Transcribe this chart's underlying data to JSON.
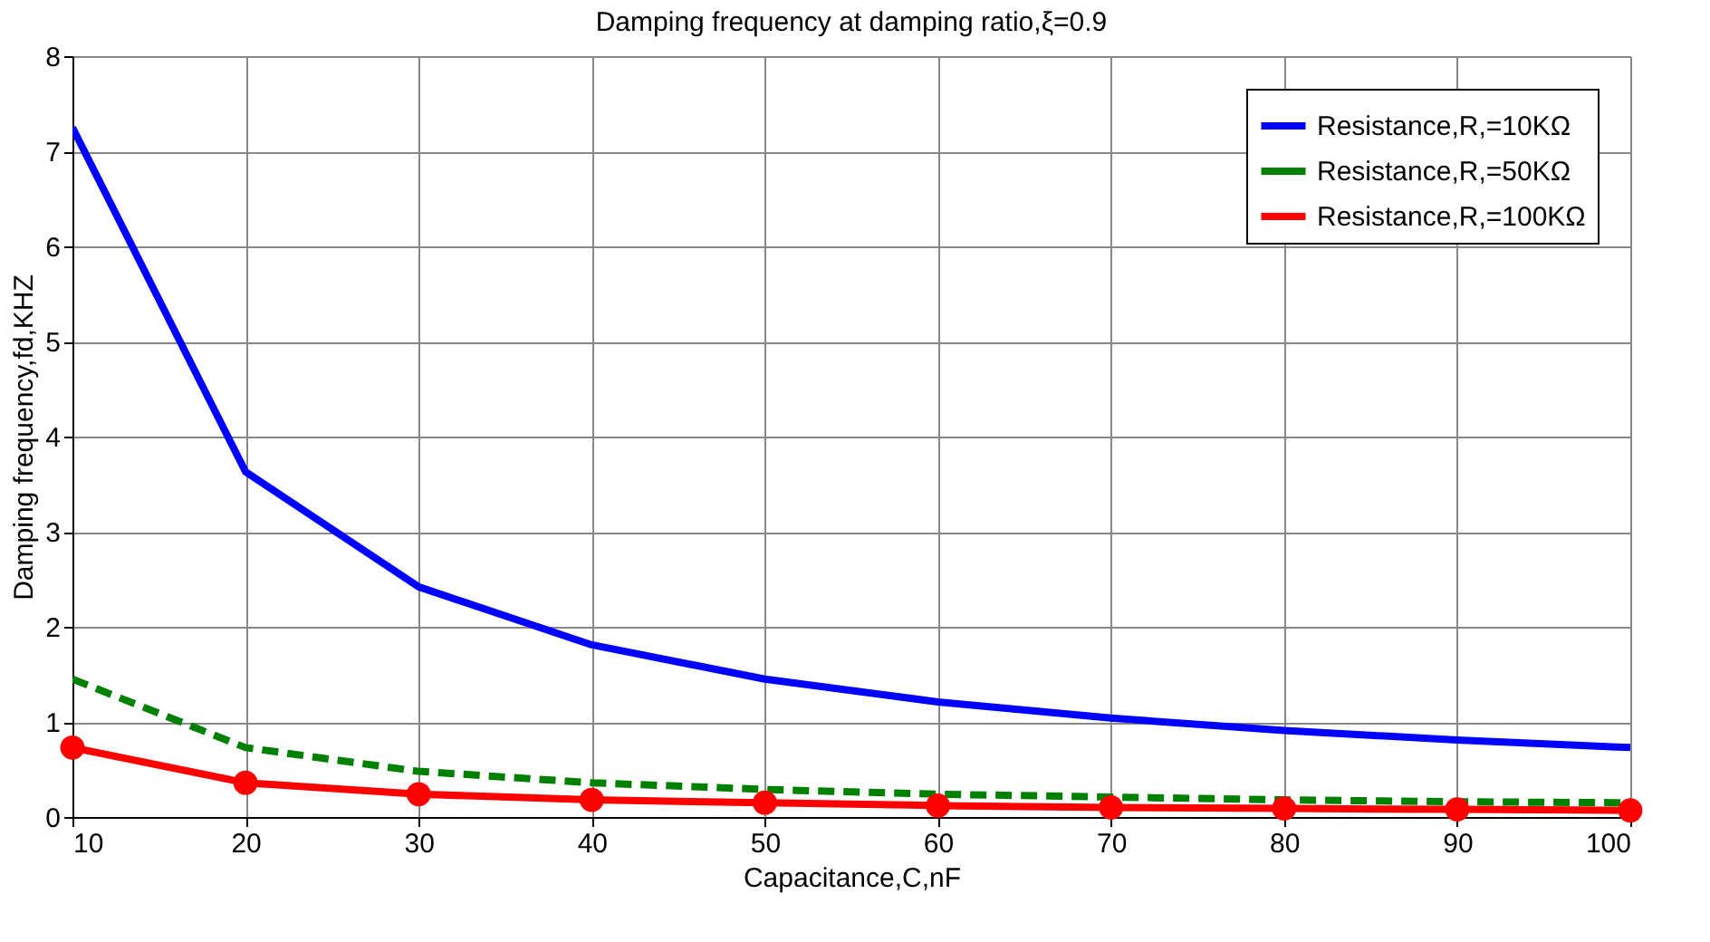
{
  "chart_data": {
    "type": "line",
    "title": "Damping frequency at damping ratio,ξ=0.9",
    "xlabel": "Capacitance,C,nF",
    "ylabel": "Damping frequency,fd,KHZ",
    "x": [
      10,
      20,
      30,
      40,
      50,
      60,
      70,
      80,
      90,
      100
    ],
    "xlim": [
      10,
      100
    ],
    "xticks": [
      10,
      20,
      30,
      40,
      50,
      60,
      70,
      80,
      90,
      100
    ],
    "ylim": [
      0,
      8
    ],
    "yticks": [
      0,
      1,
      2,
      3,
      4,
      5,
      6,
      7,
      8
    ],
    "grid": true,
    "legend": "top right",
    "series": [
      {
        "name": "Resistance,R,=10KΩ",
        "color": "#0000ff",
        "line_style": "solid",
        "marker": "none",
        "values": [
          7.25,
          3.63,
          2.42,
          1.81,
          1.45,
          1.21,
          1.04,
          0.91,
          0.81,
          0.73
        ]
      },
      {
        "name": "Resistance,R,=50KΩ",
        "color": "#008000",
        "line_style": "dashed",
        "marker": "none",
        "values": [
          1.45,
          0.73,
          0.48,
          0.36,
          0.29,
          0.24,
          0.21,
          0.18,
          0.16,
          0.15
        ]
      },
      {
        "name": "Resistance,R,=100KΩ",
        "color": "#ff0000",
        "line_style": "solid",
        "marker": "circle",
        "values": [
          0.73,
          0.36,
          0.24,
          0.18,
          0.15,
          0.12,
          0.1,
          0.09,
          0.08,
          0.07
        ]
      }
    ]
  }
}
